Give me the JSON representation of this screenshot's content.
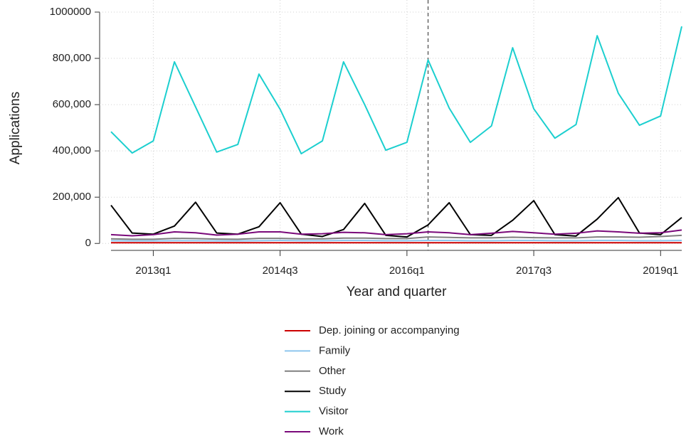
{
  "chart_data": {
    "type": "line",
    "x_label": "Year and quarter",
    "y_label": "Applications",
    "categories": [
      null,
      null,
      "2013q1",
      null,
      null,
      null,
      null,
      null,
      "2014q3",
      null,
      null,
      null,
      null,
      null,
      "2016q1",
      null,
      null,
      null,
      null,
      null,
      "2017q3",
      null,
      null,
      null,
      null,
      null,
      "2019q1",
      null
    ],
    "vline_index": 15,
    "ylim": [
      -30000,
      1000000
    ],
    "yticks": [
      0,
      {
        "value": 200000,
        "label": "200,000"
      },
      {
        "value": 400000,
        "label": "400,000"
      },
      {
        "value": 600000,
        "label": "600,000"
      },
      {
        "value": 800000,
        "label": "800,000"
      },
      1000000
    ],
    "grid": true,
    "series": [
      {
        "name": "Dep. joining or accompanying",
        "color": "#cc0000",
        "values": [
          3000,
          3000,
          3000,
          3000,
          3000,
          3000,
          3000,
          3000,
          3000,
          3000,
          3000,
          3000,
          3000,
          3000,
          3000,
          3000,
          3000,
          3000,
          3000,
          3000,
          3000,
          3000,
          3000,
          3000,
          3000,
          3000,
          3000,
          3000
        ]
      },
      {
        "name": "Family",
        "color": "#8ec6ee",
        "values": [
          12000,
          11000,
          11000,
          12000,
          12000,
          11000,
          11000,
          12000,
          13000,
          12000,
          12000,
          13000,
          13000,
          12000,
          12000,
          13000,
          13000,
          12000,
          12000,
          13000,
          13000,
          12000,
          12000,
          13000,
          13000,
          12000,
          12000,
          13000
        ]
      },
      {
        "name": "Other",
        "color": "#808080",
        "values": [
          20000,
          18000,
          18000,
          22000,
          21000,
          19000,
          18000,
          22000,
          22000,
          20000,
          20000,
          23000,
          23000,
          21000,
          21000,
          28000,
          26000,
          24000,
          24000,
          27000,
          25000,
          24000,
          24000,
          28000,
          28000,
          27000,
          30000,
          35000
        ]
      },
      {
        "name": "Study",
        "color": "#000000",
        "values": [
          165000,
          45000,
          40000,
          75000,
          178000,
          45000,
          40000,
          72000,
          176000,
          40000,
          30000,
          60000,
          173000,
          35000,
          28000,
          80000,
          176000,
          38000,
          35000,
          100000,
          185000,
          38000,
          32000,
          105000,
          198000,
          45000,
          38000,
          112000
        ]
      },
      {
        "name": "Visitor",
        "color": "#1ccfcf",
        "values": [
          483000,
          391000,
          443000,
          785000,
          590000,
          395000,
          428000,
          732000,
          580000,
          388000,
          443000,
          785000,
          600000,
          403000,
          437000,
          793000,
          585000,
          437000,
          508000,
          846000,
          582000,
          455000,
          514000,
          898000,
          649000,
          511000,
          551000,
          938000
        ]
      },
      {
        "name": "Work",
        "color": "#7a0a7a",
        "values": [
          38000,
          33000,
          38000,
          50000,
          46000,
          36000,
          40000,
          50000,
          50000,
          40000,
          42000,
          48000,
          46000,
          38000,
          42000,
          50000,
          46000,
          38000,
          44000,
          52000,
          46000,
          40000,
          44000,
          54000,
          50000,
          44000,
          46000,
          58000
        ]
      }
    ]
  }
}
